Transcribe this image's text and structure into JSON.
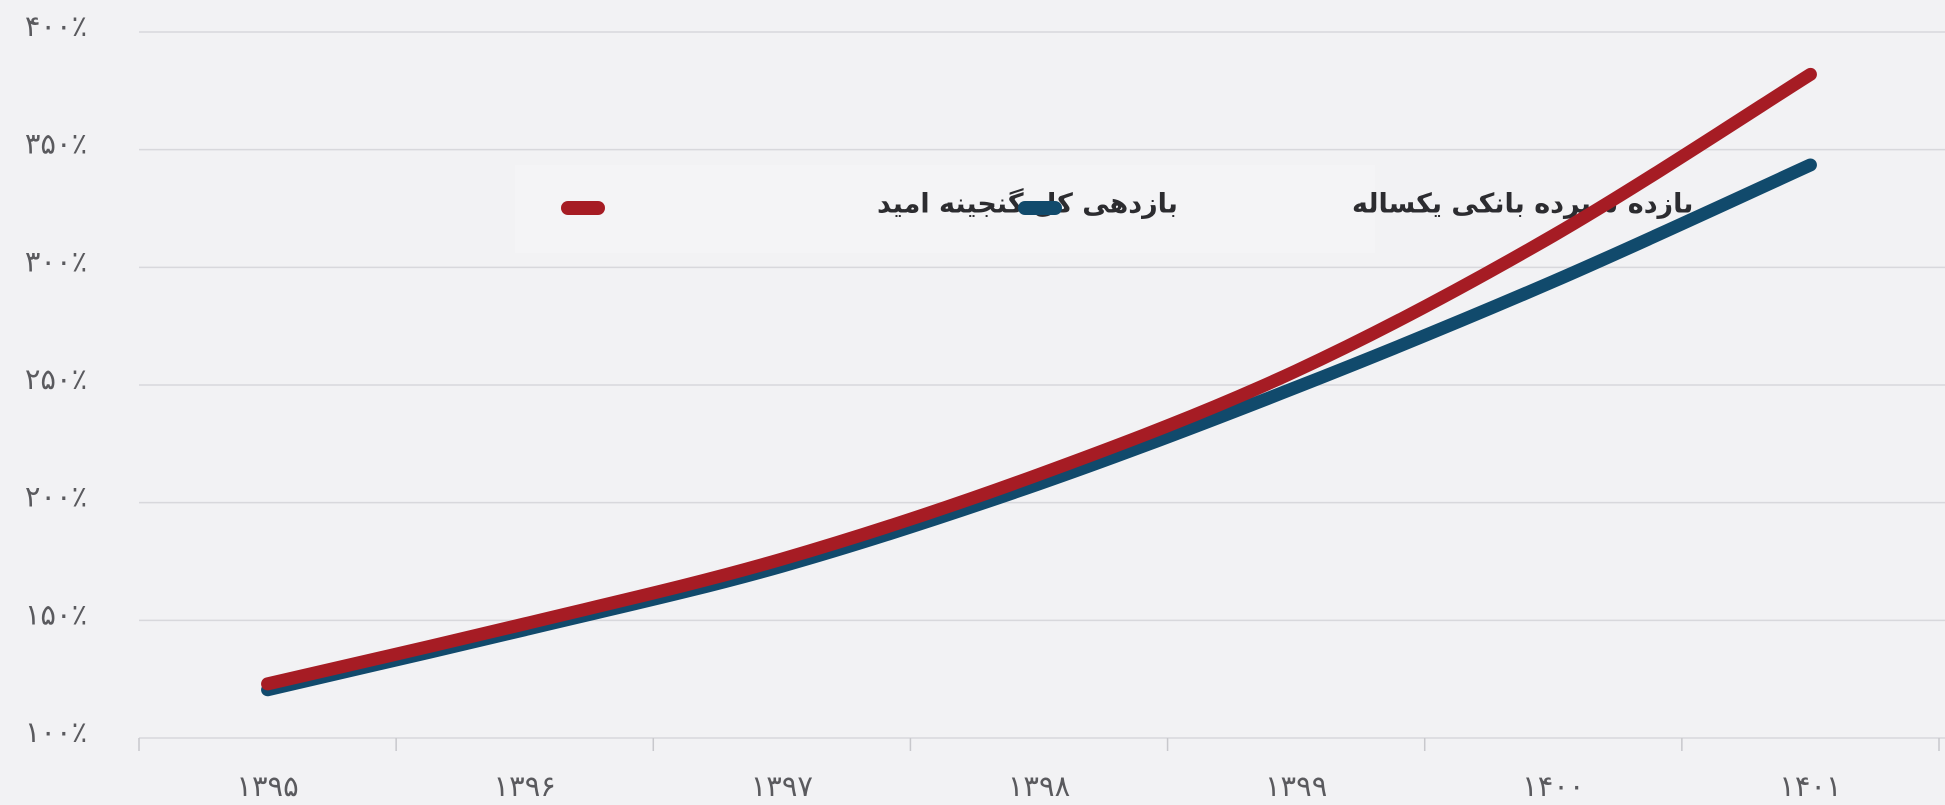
{
  "chart_data": {
    "type": "line",
    "categories": [
      "۱۳۹۵",
      "۱۳۹۶",
      "۱۳۹۷",
      "۱۳۹۸",
      "۱۳۹۹",
      "۱۴۰۰",
      "۱۴۰۱"
    ],
    "series": [
      {
        "name": "بازدهی کل گنجینه امید",
        "color": "#a61c24",
        "values": [
          123,
          148.5,
          176,
          212,
          256,
          313.5,
          382
        ]
      },
      {
        "name": "بازده سپرده بانکی یکساله",
        "color": "#114a6c",
        "values": [
          120.5,
          146,
          173,
          208,
          249,
          294,
          343.5
        ]
      }
    ],
    "ylim": [
      100,
      400
    ],
    "yticks": [
      {
        "value": 100,
        "label": "۱۰۰٪"
      },
      {
        "value": 150,
        "label": "۱۵۰٪"
      },
      {
        "value": 200,
        "label": "۲۰۰٪"
      },
      {
        "value": 250,
        "label": "۲۵۰٪"
      },
      {
        "value": 300,
        "label": "۳۰۰٪"
      },
      {
        "value": 350,
        "label": "۳۵۰٪"
      },
      {
        "value": 400,
        "label": "۴۰۰٪"
      }
    ],
    "grid": true
  }
}
